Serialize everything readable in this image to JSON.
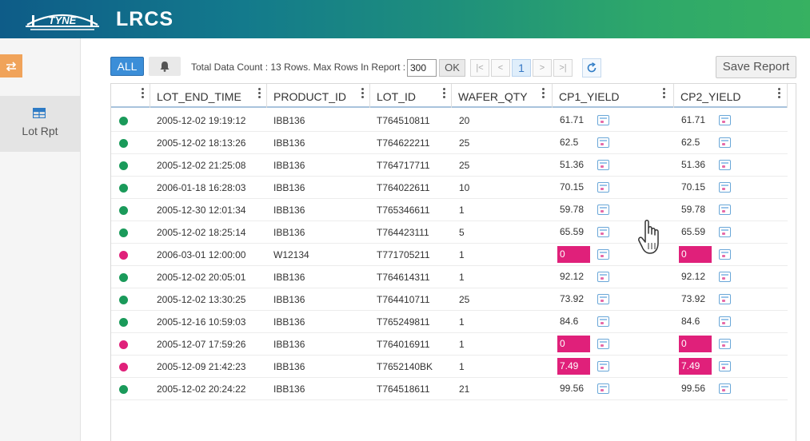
{
  "header": {
    "logo_text": "TYNE",
    "app_title": "LRCS"
  },
  "sidebar": {
    "toggle_icon": "swap-arrows-icon",
    "items": [
      {
        "label": "Lot Rpt",
        "icon": "table-grid-icon"
      }
    ]
  },
  "toolbar": {
    "all_label": "ALL",
    "bell_icon": "bell-icon",
    "total_text": "Total Data Count : 13 Rows. Max Rows In Report :",
    "max_rows_value": "300",
    "ok_label": "OK",
    "pager": {
      "first": "|<",
      "prev": "<",
      "current": "1",
      "next": ">",
      "last": ">|"
    },
    "refresh_icon": "refresh-icon",
    "save_label": "Save Report"
  },
  "table": {
    "columns": [
      "LOT_END_TIME",
      "PRODUCT_ID",
      "LOT_ID",
      "WAFER_QTY",
      "CP1_YIELD",
      "CP2_YIELD"
    ],
    "rows": [
      {
        "status": "ok",
        "lot_end_time": "2005-12-02 19:19:12",
        "product_id": "IBB136",
        "lot_id": "T764510811",
        "wafer_qty": "20",
        "cp1_yield": "61.71",
        "cp2_yield": "61.71"
      },
      {
        "status": "ok",
        "lot_end_time": "2005-12-02 18:13:26",
        "product_id": "IBB136",
        "lot_id": "T764622211",
        "wafer_qty": "25",
        "cp1_yield": "62.5",
        "cp2_yield": "62.5"
      },
      {
        "status": "ok",
        "lot_end_time": "2005-12-02 21:25:08",
        "product_id": "IBB136",
        "lot_id": "T764717711",
        "wafer_qty": "25",
        "cp1_yield": "51.36",
        "cp2_yield": "51.36"
      },
      {
        "status": "ok",
        "lot_end_time": "2006-01-18 16:28:03",
        "product_id": "IBB136",
        "lot_id": "T764022611",
        "wafer_qty": "10",
        "cp1_yield": "70.15",
        "cp2_yield": "70.15"
      },
      {
        "status": "ok",
        "lot_end_time": "2005-12-30 12:01:34",
        "product_id": "IBB136",
        "lot_id": "T765346611",
        "wafer_qty": "1",
        "cp1_yield": "59.78",
        "cp2_yield": "59.78"
      },
      {
        "status": "ok",
        "lot_end_time": "2005-12-02 18:25:14",
        "product_id": "IBB136",
        "lot_id": "T764423111",
        "wafer_qty": "5",
        "cp1_yield": "65.59",
        "cp2_yield": "65.59"
      },
      {
        "status": "bad",
        "lot_end_time": "2006-03-01 12:00:00",
        "product_id": "W12134",
        "lot_id": "T771705211",
        "wafer_qty": "1",
        "cp1_yield": "0",
        "cp2_yield": "0"
      },
      {
        "status": "ok",
        "lot_end_time": "2005-12-02 20:05:01",
        "product_id": "IBB136",
        "lot_id": "T764614311",
        "wafer_qty": "1",
        "cp1_yield": "92.12",
        "cp2_yield": "92.12"
      },
      {
        "status": "ok",
        "lot_end_time": "2005-12-02 13:30:25",
        "product_id": "IBB136",
        "lot_id": "T764410711",
        "wafer_qty": "25",
        "cp1_yield": "73.92",
        "cp2_yield": "73.92"
      },
      {
        "status": "ok",
        "lot_end_time": "2005-12-16 10:59:03",
        "product_id": "IBB136",
        "lot_id": "T765249811",
        "wafer_qty": "1",
        "cp1_yield": "84.6",
        "cp2_yield": "84.6"
      },
      {
        "status": "bad",
        "lot_end_time": "2005-12-07 17:59:26",
        "product_id": "IBB136",
        "lot_id": "T764016911",
        "wafer_qty": "1",
        "cp1_yield": "0",
        "cp2_yield": "0"
      },
      {
        "status": "bad",
        "lot_end_time": "2005-12-09 21:42:23",
        "product_id": "IBB136",
        "lot_id": "T7652140BK",
        "wafer_qty": "1",
        "cp1_yield": "7.49",
        "cp2_yield": "7.49"
      },
      {
        "status": "ok",
        "lot_end_time": "2005-12-02 20:24:22",
        "product_id": "IBB136",
        "lot_id": "T764518611",
        "wafer_qty": "21",
        "cp1_yield": "99.56",
        "cp2_yield": "99.56"
      }
    ]
  },
  "colors": {
    "ok_status": "#1a9a5a",
    "bad_status": "#e0207a",
    "accent": "#3b8ed8"
  }
}
